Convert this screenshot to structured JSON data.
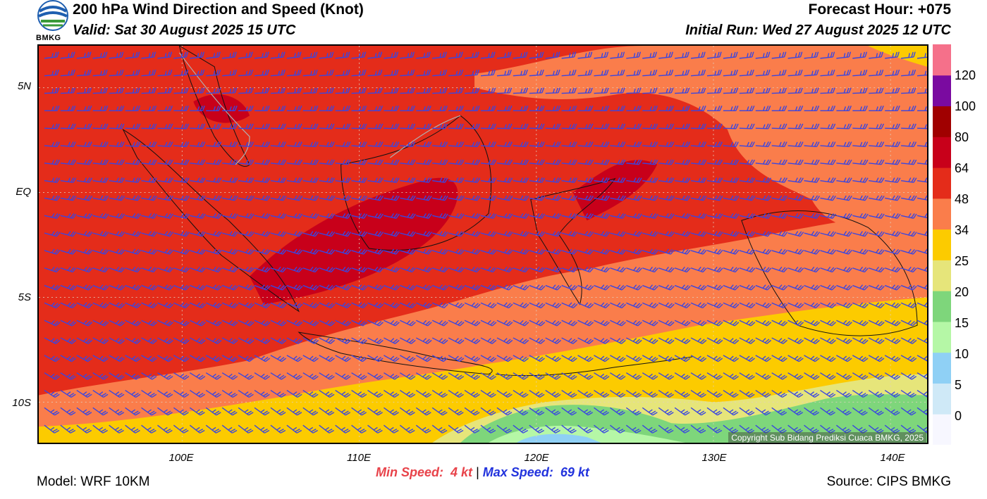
{
  "header": {
    "title": "200 hPa Wind Direction and Speed (Knot)",
    "valid": "Valid: Sat 30 August 2025 15 UTC",
    "forecast_hour": "Forecast Hour: +075",
    "initial_run": "Initial Run: Wed 27 August 2025 12 UTC"
  },
  "logo": {
    "text": "BMKG",
    "icon": "bmkg-logo-icon"
  },
  "map": {
    "lat_labels": [
      "5N",
      "EQ",
      "5S",
      "10S"
    ],
    "lon_labels": [
      "100E",
      "110E",
      "120E",
      "130E",
      "140E"
    ],
    "barb_color": "#3a46e0",
    "copyright": "Copyright Sub Bidang Prediksi Cuaca BMKG, 2025"
  },
  "colorbar": {
    "labels": [
      "120",
      "100",
      "80",
      "64",
      "48",
      "34",
      "25",
      "20",
      "15",
      "10",
      "5",
      "0"
    ],
    "colors": [
      "#f7f7ff",
      "#cfe9f7",
      "#8fd0f5",
      "#b5f7a6",
      "#7ed67b",
      "#e6e57a",
      "#fccb00",
      "#fa7d4b",
      "#e42c1a",
      "#c8001a",
      "#a00000",
      "#7a0aa0",
      "#f5708a"
    ]
  },
  "footer": {
    "model": "Model: WRF 10KM",
    "source": "Source: CIPS BMKG",
    "min_label": "Min Speed:",
    "min_value": "4 kt",
    "separator": "|",
    "max_label": "Max Speed:",
    "max_value": "69 kt"
  }
}
